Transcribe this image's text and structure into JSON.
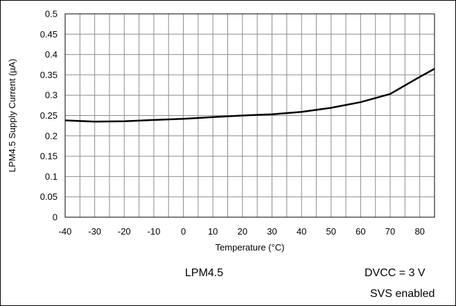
{
  "chart_data": {
    "type": "line",
    "title": "",
    "xlabel": "Temperature (°C)",
    "ylabel": "LPM4.5 Supply Current (µA)",
    "xlim": [
      -40,
      85
    ],
    "ylim": [
      0,
      0.5
    ],
    "x_ticks": [
      "-40",
      "-30",
      "-20",
      "-10",
      "0",
      "10",
      "20",
      "30",
      "40",
      "50",
      "60",
      "70",
      "80"
    ],
    "y_ticks": [
      "0",
      "0.05",
      "0.1",
      "0.15",
      "0.2",
      "0.25",
      "0.3",
      "0.35",
      "0.4",
      "0.45",
      "0.5"
    ],
    "grid": true,
    "series": [
      {
        "color": "#000000",
        "x": [
          -40,
          -30,
          -20,
          -10,
          0,
          10,
          20,
          30,
          40,
          50,
          60,
          70,
          80,
          85
        ],
        "y": [
          0.238,
          0.235,
          0.236,
          0.239,
          0.242,
          0.246,
          0.25,
          0.253,
          0.259,
          0.269,
          0.283,
          0.303,
          0.345,
          0.365
        ]
      }
    ]
  },
  "annotations": {
    "mode": "LPM4.5",
    "voltage": "DVCC = 3 V",
    "svs": "SVS enabled"
  }
}
